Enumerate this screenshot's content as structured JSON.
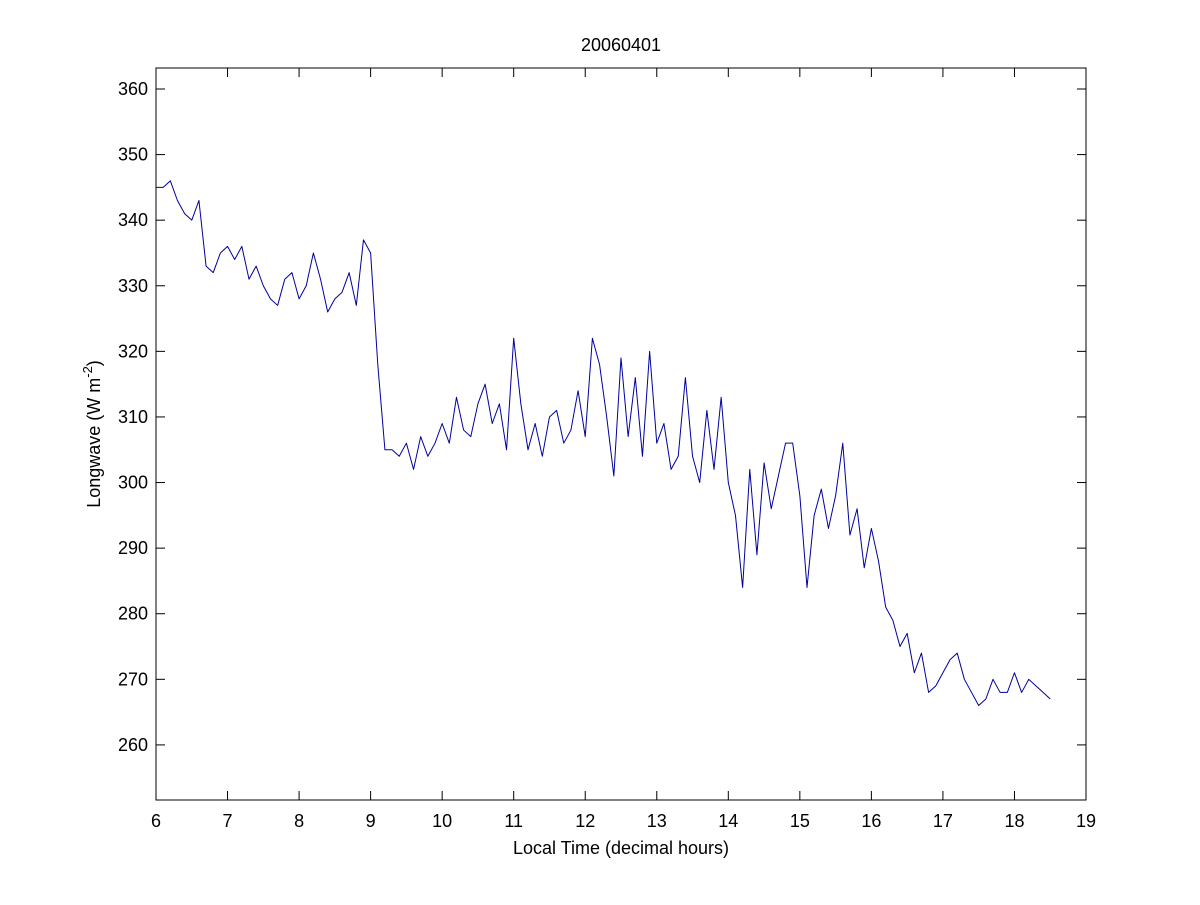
{
  "chart_data": {
    "type": "line",
    "title": "20060401",
    "xlabel": "Local Time (decimal hours)",
    "ylabel": [
      "Longwave (W m",
      "-2",
      ")"
    ],
    "x": [
      6.0,
      6.1,
      6.2,
      6.3,
      6.4,
      6.5,
      6.6,
      6.7,
      6.8,
      6.9,
      7.0,
      7.1,
      7.2,
      7.3,
      7.4,
      7.5,
      7.6,
      7.7,
      7.8,
      7.9,
      8.0,
      8.1,
      8.2,
      8.3,
      8.4,
      8.5,
      8.6,
      8.7,
      8.8,
      8.9,
      9.0,
      9.1,
      9.2,
      9.3,
      9.4,
      9.5,
      9.6,
      9.7,
      9.8,
      9.9,
      10.0,
      10.1,
      10.2,
      10.3,
      10.4,
      10.5,
      10.6,
      10.7,
      10.8,
      10.9,
      11.0,
      11.1,
      11.2,
      11.3,
      11.4,
      11.5,
      11.6,
      11.7,
      11.8,
      11.9,
      12.0,
      12.1,
      12.2,
      12.3,
      12.4,
      12.5,
      12.6,
      12.7,
      12.8,
      12.9,
      13.0,
      13.1,
      13.2,
      13.3,
      13.4,
      13.5,
      13.6,
      13.7,
      13.8,
      13.9,
      14.0,
      14.1,
      14.2,
      14.3,
      14.4,
      14.5,
      14.6,
      14.7,
      14.8,
      14.9,
      15.0,
      15.1,
      15.2,
      15.3,
      15.4,
      15.5,
      15.6,
      15.7,
      15.8,
      15.9,
      16.0,
      16.1,
      16.2,
      16.3,
      16.4,
      16.5,
      16.6,
      16.7,
      16.8,
      16.9,
      17.0,
      17.1,
      17.2,
      17.3,
      17.4,
      17.5,
      17.6,
      17.7,
      17.8,
      17.9,
      18.0,
      18.1,
      18.2,
      18.3,
      18.4,
      18.5
    ],
    "series": [
      {
        "name": "Longwave",
        "color": "#0000a0",
        "values": [
          345,
          345,
          346,
          343,
          341,
          340,
          343,
          333,
          332,
          335,
          336,
          334,
          336,
          331,
          333,
          330,
          328,
          327,
          331,
          332,
          328,
          330,
          335,
          331,
          326,
          328,
          329,
          332,
          327,
          337,
          335,
          318,
          305,
          305,
          304,
          306,
          302,
          307,
          304,
          306,
          309,
          306,
          313,
          308,
          307,
          312,
          315,
          309,
          312,
          305,
          322,
          312,
          305,
          309,
          304,
          310,
          311,
          306,
          308,
          314,
          307,
          322,
          318,
          310,
          301,
          319,
          307,
          316,
          304,
          320,
          306,
          309,
          302,
          304,
          316,
          304,
          300,
          311,
          302,
          313,
          300,
          295,
          284,
          302,
          289,
          303,
          296,
          301,
          306,
          306,
          298,
          284,
          295,
          299,
          293,
          298,
          306,
          292,
          296,
          287,
          293,
          288,
          281,
          279,
          275,
          277,
          271,
          274,
          268,
          269,
          271,
          273,
          274,
          270,
          268,
          266,
          267,
          270,
          268,
          268,
          271,
          268,
          270,
          269,
          268,
          267
        ]
      }
    ],
    "xlim": [
      6,
      19
    ],
    "xticks": [
      6,
      7,
      8,
      9,
      10,
      11,
      12,
      13,
      14,
      15,
      16,
      17,
      18,
      19
    ],
    "ylim": [
      251.6,
      363.2
    ],
    "yticks": [
      260,
      270,
      280,
      290,
      300,
      310,
      320,
      330,
      340,
      350,
      360
    ],
    "grid": false
  }
}
